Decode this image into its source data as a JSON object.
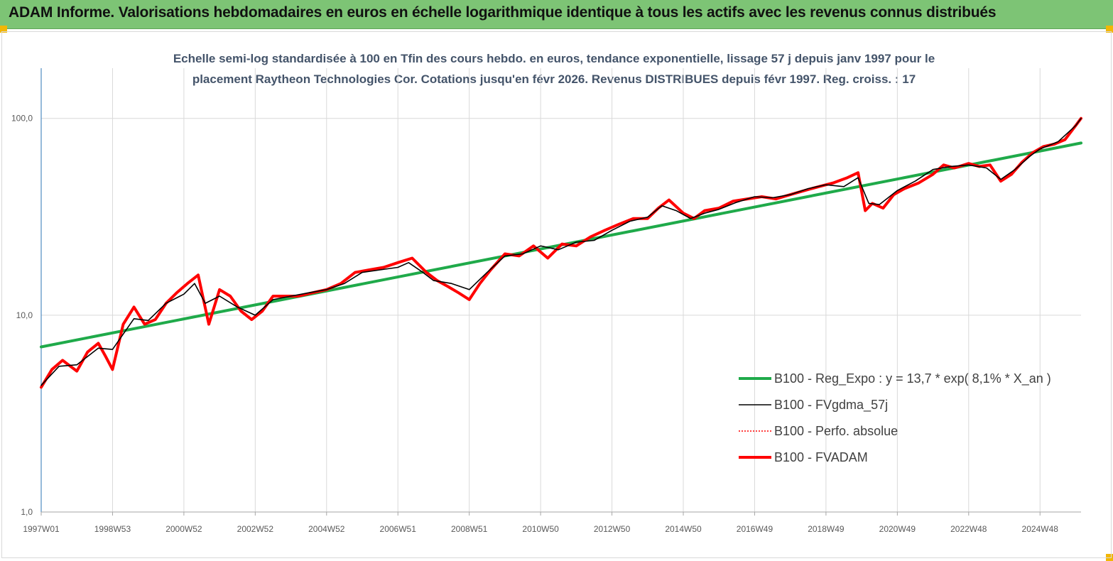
{
  "banner": {
    "title": "ADAM Informe. Valorisations hebdomadaires en euros en échelle logarithmique identique à tous les actifs avec les revenus connus distribués",
    "bg_color": "#7dc475",
    "corner_color": "#f2b705"
  },
  "chart_data": {
    "type": "line",
    "title": "Echelle semi-log standardisée à 100 en Tfin des cours hebdo. en euros, tendance exponentielle, lissage 57 j depuis janv 1997 pour le placement Raytheon Technologies Cor. Cotations jusqu'en févr 2026. Revenus DISTRIBUES depuis févr 1997. Reg. croiss. : 17",
    "title_lines": [
      "Echelle semi-log standardisée à 100 en Tfin des cours hebdo. en euros, tendance exponentielle, lissage 57 j depuis janv 1997 pour le",
      "placement Raytheon Technologies Cor. Cotations jusqu'en févr 2026. Revenus DISTRIBUES depuis févr 1997. Reg. croiss. : 17"
    ],
    "y_scale": "log",
    "ylim": [
      1,
      180
    ],
    "xlim": [
      1997.0,
      2026.15
    ],
    "y_ticks": [
      {
        "value": 1,
        "label": "1,0"
      },
      {
        "value": 10,
        "label": "10,0"
      },
      {
        "value": 100,
        "label": "100,0"
      }
    ],
    "x_ticks": [
      {
        "value": 1997.0,
        "label": "1997W01"
      },
      {
        "value": 1999.0,
        "label": "1998W53"
      },
      {
        "value": 2001.0,
        "label": "2000W52"
      },
      {
        "value": 2003.0,
        "label": "2002W52"
      },
      {
        "value": 2005.0,
        "label": "2004W52"
      },
      {
        "value": 2007.0,
        "label": "2006W51"
      },
      {
        "value": 2009.0,
        "label": "2008W51"
      },
      {
        "value": 2011.0,
        "label": "2010W50"
      },
      {
        "value": 2013.0,
        "label": "2012W50"
      },
      {
        "value": 2015.0,
        "label": "2014W50"
      },
      {
        "value": 2017.0,
        "label": "2016W49"
      },
      {
        "value": 2019.0,
        "label": "2018W49"
      },
      {
        "value": 2021.0,
        "label": "2020W49"
      },
      {
        "value": 2023.0,
        "label": "2022W48"
      },
      {
        "value": 2025.0,
        "label": "2024W48"
      }
    ],
    "vertical_gridlines": true,
    "legend_position": "bottom-right",
    "series": [
      {
        "name": "B100 - Reg_Expo : y = 13,7 *  exp( 8,1% *   X_an )",
        "color": "#1faa4a",
        "style": "solid-thick",
        "x": [
          1997.0,
          2026.15
        ],
        "y": [
          6.9,
          75.0
        ]
      },
      {
        "name": "B100 - FVgdma_57j",
        "color": "#000000",
        "style": "solid-thin",
        "x": [
          1997.0,
          1997.5,
          1998.0,
          1998.6,
          1999.0,
          1999.6,
          2000.0,
          2000.5,
          2001.0,
          2001.3,
          2001.6,
          2002.0,
          2002.5,
          2003.0,
          2003.5,
          2004.0,
          2004.5,
          2005.0,
          2005.5,
          2006.0,
          2006.5,
          2007.0,
          2007.3,
          2007.7,
          2008.0,
          2008.5,
          2009.0,
          2009.5,
          2010.0,
          2010.5,
          2011.0,
          2011.5,
          2012.0,
          2012.5,
          2013.0,
          2013.5,
          2014.0,
          2014.4,
          2014.8,
          2015.2,
          2015.6,
          2016.0,
          2016.5,
          2017.0,
          2017.5,
          2018.0,
          2018.5,
          2019.0,
          2019.5,
          2019.9,
          2020.2,
          2020.5,
          2021.0,
          2021.5,
          2022.0,
          2022.5,
          2023.0,
          2023.5,
          2023.9,
          2024.3,
          2024.7,
          2025.0,
          2025.5,
          2026.0,
          2026.15
        ],
        "y": [
          4.4,
          5.5,
          5.6,
          6.8,
          6.7,
          9.6,
          9.4,
          11.5,
          12.8,
          14.5,
          11.5,
          12.5,
          11.0,
          10.0,
          12.0,
          12.5,
          13.0,
          13.5,
          14.5,
          16.5,
          17.0,
          17.5,
          18.5,
          16.5,
          15.0,
          14.5,
          13.5,
          16.5,
          20.0,
          20.5,
          22.5,
          21.5,
          23.5,
          24.0,
          27.0,
          30.0,
          31.5,
          36.0,
          34.0,
          31.0,
          33.0,
          34.5,
          37.5,
          40.0,
          39.5,
          41.0,
          44.0,
          46.0,
          45.0,
          50.0,
          37.0,
          36.5,
          43.0,
          48.0,
          55.0,
          57.0,
          58.0,
          56.0,
          49.0,
          55.0,
          64.0,
          70.0,
          76.0,
          92.0,
          100.0
        ]
      },
      {
        "name": "B100 - Perfo. absolue",
        "color": "#ff0000",
        "style": "dotted",
        "x": [
          1997.0,
          1997.3,
          1997.6,
          1998.0,
          1998.3,
          1998.6,
          1998.8,
          1999.0,
          1999.3,
          1999.6,
          1999.9,
          2000.2,
          2000.5,
          2000.8,
          2001.1,
          2001.4,
          2001.7,
          2002.0,
          2002.3,
          2002.6,
          2002.9,
          2003.2,
          2003.5,
          2003.8,
          2004.2,
          2004.6,
          2005.0,
          2005.4,
          2005.8,
          2006.2,
          2006.6,
          2007.0,
          2007.4,
          2007.8,
          2008.1,
          2008.4,
          2008.7,
          2009.0,
          2009.3,
          2009.6,
          2010.0,
          2010.4,
          2010.8,
          2011.2,
          2011.6,
          2012.0,
          2012.4,
          2012.8,
          2013.2,
          2013.6,
          2014.0,
          2014.3,
          2014.6,
          2015.0,
          2015.3,
          2015.6,
          2016.0,
          2016.4,
          2016.8,
          2017.2,
          2017.6,
          2018.0,
          2018.4,
          2018.8,
          2019.2,
          2019.6,
          2019.9,
          2020.1,
          2020.3,
          2020.6,
          2020.9,
          2021.2,
          2021.6,
          2022.0,
          2022.3,
          2022.6,
          2023.0,
          2023.3,
          2023.6,
          2023.9,
          2024.2,
          2024.5,
          2024.8,
          2025.1,
          2025.4,
          2025.7,
          2026.0,
          2026.15
        ],
        "y": [
          4.3,
          5.3,
          5.9,
          5.2,
          6.5,
          7.2,
          6.2,
          5.3,
          9.0,
          11.0,
          9.0,
          9.5,
          11.5,
          13.0,
          14.5,
          16.0,
          9.0,
          13.5,
          12.5,
          10.5,
          9.5,
          10.5,
          12.5,
          12.5,
          12.5,
          13.0,
          13.5,
          14.5,
          16.5,
          17.0,
          17.5,
          18.5,
          19.5,
          16.5,
          15.0,
          14.0,
          13.0,
          12.0,
          14.5,
          17.0,
          20.5,
          20.0,
          22.5,
          19.5,
          23.0,
          22.5,
          25.0,
          27.0,
          29.0,
          31.0,
          31.0,
          35.0,
          38.5,
          33.0,
          31.0,
          34.0,
          35.0,
          38.0,
          39.0,
          40.0,
          39.0,
          41.0,
          43.0,
          45.0,
          47.0,
          50.0,
          53.0,
          34.0,
          37.0,
          35.0,
          41.0,
          44.0,
          47.0,
          52.0,
          58.0,
          56.0,
          59.0,
          57.0,
          58.0,
          48.0,
          52.0,
          60.0,
          67.0,
          72.0,
          74.0,
          78.0,
          92.0,
          100.0
        ]
      },
      {
        "name": "B100 - FVADAM",
        "color": "#ff0000",
        "style": "solid-thick",
        "x": [
          1997.0,
          1997.3,
          1997.6,
          1998.0,
          1998.3,
          1998.6,
          1998.8,
          1999.0,
          1999.3,
          1999.6,
          1999.9,
          2000.2,
          2000.5,
          2000.8,
          2001.1,
          2001.4,
          2001.7,
          2002.0,
          2002.3,
          2002.6,
          2002.9,
          2003.2,
          2003.5,
          2003.8,
          2004.2,
          2004.6,
          2005.0,
          2005.4,
          2005.8,
          2006.2,
          2006.6,
          2007.0,
          2007.4,
          2007.8,
          2008.1,
          2008.4,
          2008.7,
          2009.0,
          2009.3,
          2009.6,
          2010.0,
          2010.4,
          2010.8,
          2011.2,
          2011.6,
          2012.0,
          2012.4,
          2012.8,
          2013.2,
          2013.6,
          2014.0,
          2014.3,
          2014.6,
          2015.0,
          2015.3,
          2015.6,
          2016.0,
          2016.4,
          2016.8,
          2017.2,
          2017.6,
          2018.0,
          2018.4,
          2018.8,
          2019.2,
          2019.6,
          2019.9,
          2020.1,
          2020.3,
          2020.6,
          2020.9,
          2021.2,
          2021.6,
          2022.0,
          2022.3,
          2022.6,
          2023.0,
          2023.3,
          2023.6,
          2023.9,
          2024.2,
          2024.5,
          2024.8,
          2025.1,
          2025.4,
          2025.7,
          2026.0,
          2026.15
        ],
        "y": [
          4.3,
          5.3,
          5.9,
          5.2,
          6.5,
          7.2,
          6.2,
          5.3,
          9.0,
          11.0,
          9.0,
          9.5,
          11.5,
          13.0,
          14.5,
          16.0,
          9.0,
          13.5,
          12.5,
          10.5,
          9.5,
          10.5,
          12.5,
          12.5,
          12.5,
          13.0,
          13.5,
          14.5,
          16.5,
          17.0,
          17.5,
          18.5,
          19.5,
          16.5,
          15.0,
          14.0,
          13.0,
          12.0,
          14.5,
          17.0,
          20.5,
          20.0,
          22.5,
          19.5,
          23.0,
          22.5,
          25.0,
          27.0,
          29.0,
          31.0,
          31.0,
          35.0,
          38.5,
          33.0,
          31.0,
          34.0,
          35.0,
          38.0,
          39.0,
          40.0,
          39.0,
          41.0,
          43.0,
          45.0,
          47.0,
          50.0,
          53.0,
          34.0,
          37.0,
          35.0,
          41.0,
          44.0,
          47.0,
          52.0,
          58.0,
          56.0,
          59.0,
          57.0,
          58.0,
          48.0,
          52.0,
          60.0,
          67.0,
          72.0,
          74.0,
          78.0,
          92.0,
          100.0
        ]
      }
    ]
  }
}
